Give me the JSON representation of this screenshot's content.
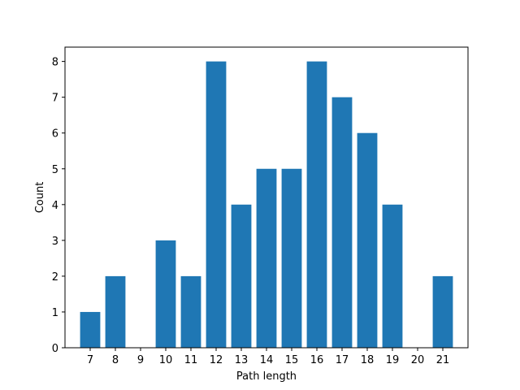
{
  "chart_data": {
    "type": "bar",
    "title": "",
    "xlabel": "Path length",
    "ylabel": "Count",
    "categories": [
      7,
      8,
      9,
      10,
      11,
      12,
      13,
      14,
      15,
      16,
      17,
      18,
      19,
      20,
      21
    ],
    "values": [
      1,
      2,
      0,
      3,
      2,
      8,
      4,
      5,
      5,
      8,
      7,
      6,
      4,
      0,
      2
    ],
    "xlim": [
      6,
      22
    ],
    "ylim": [
      0,
      8.4
    ],
    "yticks": [
      0,
      1,
      2,
      3,
      4,
      5,
      6,
      7,
      8
    ],
    "grid": false,
    "legend": "none",
    "bar_color": "#1f77b4"
  }
}
